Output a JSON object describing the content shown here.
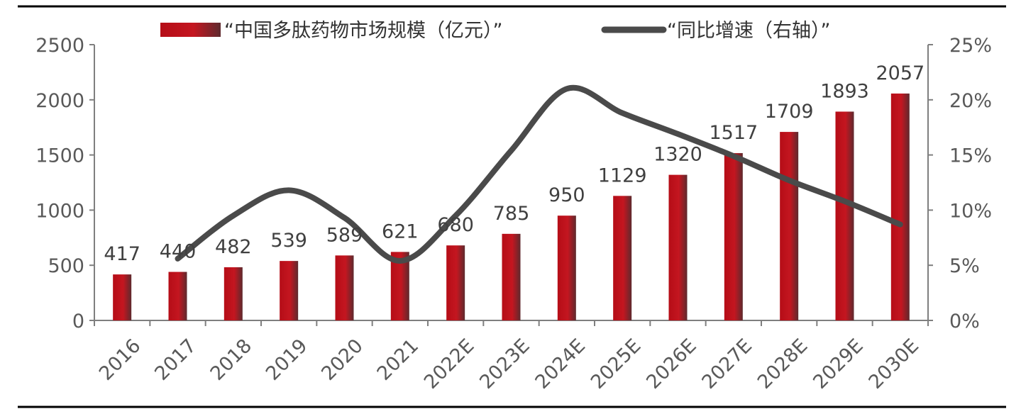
{
  "chart_data": {
    "type": "bar+line",
    "categories": [
      "2016",
      "2017",
      "2018",
      "2019",
      "2020",
      "2021",
      "2022E",
      "2023E",
      "2024E",
      "2025E",
      "2026E",
      "2027E",
      "2028E",
      "2029E",
      "2030E"
    ],
    "series": [
      {
        "name": "“中国多肽药物市场规模（亿元）”",
        "type": "bar",
        "axis": "left",
        "color": "#c0141e",
        "values": [
          417,
          440,
          482,
          539,
          589,
          621,
          680,
          785,
          950,
          1129,
          1320,
          1517,
          1709,
          1893,
          2057
        ],
        "labels": [
          "417",
          "440",
          "482",
          "539",
          "589",
          "621",
          "680",
          "785",
          "950",
          "1129",
          "1320",
          "1517",
          "1709",
          "1893",
          "2057"
        ]
      },
      {
        "name": "“同比增速（右轴）”",
        "type": "line",
        "axis": "right",
        "color": "#4a4a4a",
        "values": [
          null,
          5.6,
          9.5,
          11.8,
          9.3,
          5.4,
          9.5,
          15.4,
          21.0,
          18.8,
          16.9,
          14.9,
          12.7,
          10.8,
          8.7
        ]
      }
    ],
    "y_left": {
      "ylim": [
        0,
        2500
      ],
      "ticks": [
        0,
        500,
        1000,
        1500,
        2000,
        2500
      ],
      "tick_labels": [
        "0",
        "500",
        "1000",
        "1500",
        "2000",
        "2500"
      ]
    },
    "y_right": {
      "ylim": [
        0,
        25
      ],
      "ticks": [
        0,
        5,
        10,
        15,
        20,
        25
      ],
      "tick_labels": [
        "0%",
        "5%",
        "10%",
        "15%",
        "20%",
        "25%"
      ]
    },
    "legend_position": "top-center",
    "grid": false
  }
}
